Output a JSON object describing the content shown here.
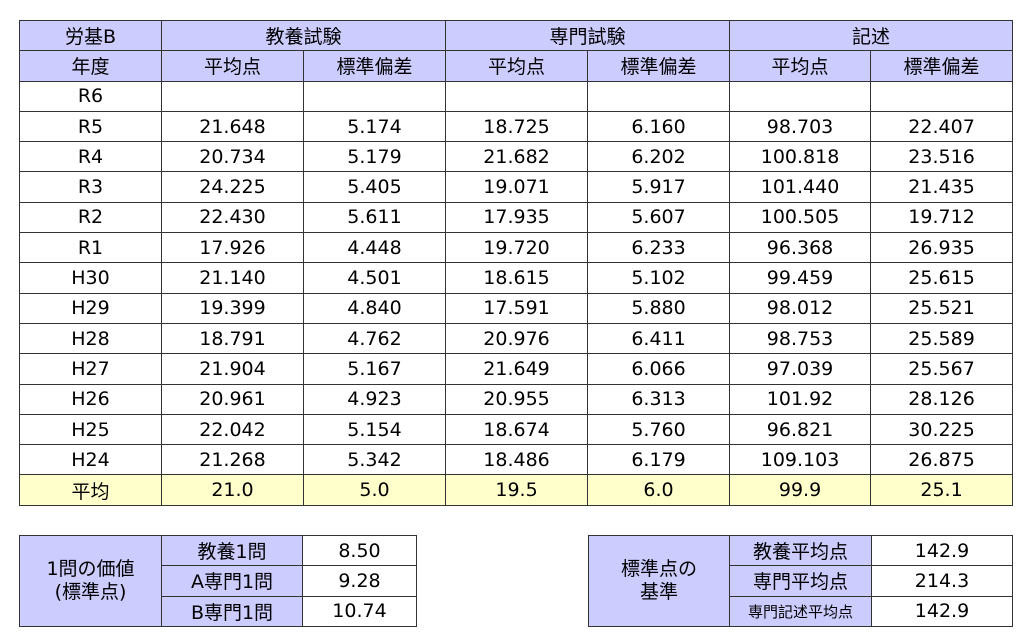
{
  "main": {
    "corner": "労基B",
    "groups": [
      "教養試験",
      "専門試験",
      "記述"
    ],
    "year_header": "年度",
    "sub_headers": [
      "平均点",
      "標準偏差",
      "平均点",
      "標準偏差",
      "平均点",
      "標準偏差"
    ],
    "rows": [
      {
        "year": "R6",
        "cells": [
          "",
          "",
          "",
          "",
          "",
          ""
        ]
      },
      {
        "year": "R5",
        "cells": [
          "21.648",
          "5.174",
          "18.725",
          "6.160",
          "98.703",
          "22.407"
        ]
      },
      {
        "year": "R4",
        "cells": [
          "20.734",
          "5.179",
          "21.682",
          "6.202",
          "100.818",
          "23.516"
        ]
      },
      {
        "year": "R3",
        "cells": [
          "24.225",
          "5.405",
          "19.071",
          "5.917",
          "101.440",
          "21.435"
        ]
      },
      {
        "year": "R2",
        "cells": [
          "22.430",
          "5.611",
          "17.935",
          "5.607",
          "100.505",
          "19.712"
        ]
      },
      {
        "year": "R1",
        "cells": [
          "17.926",
          "4.448",
          "19.720",
          "6.233",
          "96.368",
          "26.935"
        ]
      },
      {
        "year": "H30",
        "cells": [
          "21.140",
          "4.501",
          "18.615",
          "5.102",
          "99.459",
          "25.615"
        ]
      },
      {
        "year": "H29",
        "cells": [
          "19.399",
          "4.840",
          "17.591",
          "5.880",
          "98.012",
          "25.521"
        ]
      },
      {
        "year": "H28",
        "cells": [
          "18.791",
          "4.762",
          "20.976",
          "6.411",
          "98.753",
          "25.589"
        ]
      },
      {
        "year": "H27",
        "cells": [
          "21.904",
          "5.167",
          "21.649",
          "6.066",
          "97.039",
          "25.567"
        ]
      },
      {
        "year": "H26",
        "cells": [
          "20.961",
          "4.923",
          "20.955",
          "6.313",
          "101.92",
          "28.126"
        ]
      },
      {
        "year": "H25",
        "cells": [
          "22.042",
          "5.154",
          "18.674",
          "5.760",
          "96.821",
          "30.225"
        ]
      },
      {
        "year": "H24",
        "cells": [
          "21.268",
          "5.342",
          "18.486",
          "6.179",
          "109.103",
          "26.875"
        ]
      }
    ],
    "average": {
      "label": "平均",
      "cells": [
        "21.0",
        "5.0",
        "19.5",
        "6.0",
        "99.9",
        "25.1"
      ]
    }
  },
  "value_table": {
    "title": "1問の価値\n(標準点)",
    "rows": [
      {
        "label": "教養1問",
        "value": "8.50"
      },
      {
        "label": "A専門1問",
        "value": "9.28"
      },
      {
        "label": "B専門1問",
        "value": "10.74"
      }
    ]
  },
  "basis_table": {
    "title": "標準点の\n基準",
    "rows": [
      {
        "label": "教養平均点",
        "value": "142.9"
      },
      {
        "label": "専門平均点",
        "value": "214.3"
      },
      {
        "label": "専門記述平均点",
        "value": "142.9"
      }
    ]
  },
  "colors": {
    "header": "#ccccff",
    "average": "#ffffcc",
    "border": "#333333"
  }
}
